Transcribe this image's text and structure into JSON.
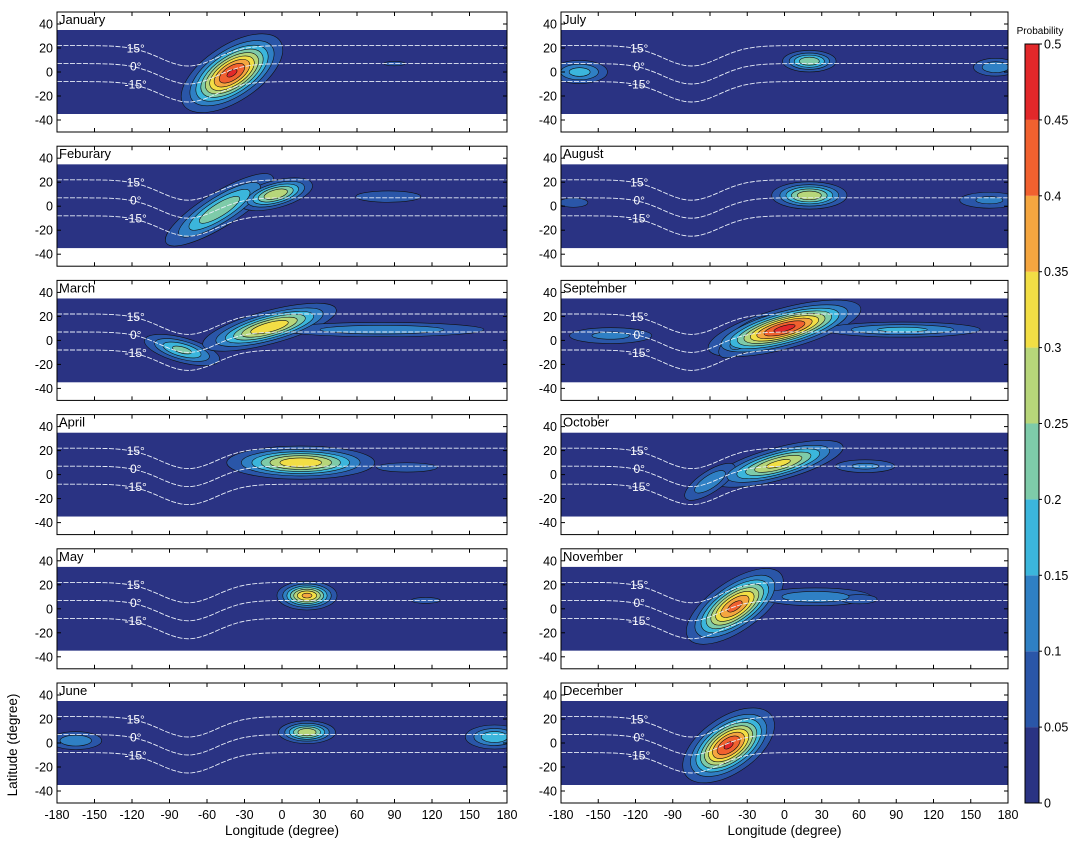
{
  "chart_data": {
    "type": "heatmap",
    "description_free": true,
    "x_axis": {
      "label": "Longitude (degree)",
      "range": [
        -180,
        180
      ],
      "ticks": [
        -180,
        -150,
        -120,
        -90,
        -60,
        -30,
        0,
        30,
        60,
        90,
        120,
        150,
        180
      ]
    },
    "y_axis": {
      "label": "Latitude (degree)",
      "range": [
        -50,
        50
      ],
      "data_range": [
        -35,
        35
      ],
      "ticks": [
        -40,
        -20,
        0,
        20,
        40
      ]
    },
    "colorbar": {
      "title": "Probability",
      "levels": [
        0,
        0.05,
        0.1,
        0.15,
        0.2,
        0.25,
        0.3,
        0.35,
        0.4,
        0.45,
        0.5
      ],
      "colors": [
        "#2a3383",
        "#2a56a8",
        "#2f80c4",
        "#3bb6dc",
        "#7ecba9",
        "#b7d67a",
        "#f2de45",
        "#f5a640",
        "#f1612f",
        "#e2282a",
        "#9c1b1e"
      ]
    },
    "magnetic_lines": [
      {
        "label": "15°",
        "mlat": 15
      },
      {
        "label": "0°",
        "mlat": 0
      },
      {
        "label": "-15°",
        "mlat": -15
      }
    ],
    "panels": [
      {
        "month": "January",
        "col": 0,
        "row": 0,
        "blobs": [
          {
            "lon": -40,
            "lat": -1,
            "slon": 22,
            "slat": 11,
            "rot": 0.4,
            "amp": 0.46
          },
          {
            "lon": 90,
            "lat": 7,
            "slon": 14,
            "slat": 3,
            "rot": 0,
            "amp": 0.06
          }
        ]
      },
      {
        "month": "Feburary",
        "col": 0,
        "row": 1,
        "blobs": [
          {
            "lon": -50,
            "lat": -3,
            "slon": 28,
            "slat": 8,
            "rot": 0.35,
            "amp": 0.25
          },
          {
            "lon": -5,
            "lat": 10,
            "slon": 16,
            "slat": 6,
            "rot": 0.1,
            "amp": 0.3
          },
          {
            "lon": 85,
            "lat": 8,
            "slon": 22,
            "slat": 4,
            "rot": 0,
            "amp": 0.1
          }
        ]
      },
      {
        "month": "March",
        "col": 0,
        "row": 2,
        "blobs": [
          {
            "lon": -80,
            "lat": -8,
            "slon": 18,
            "slat": 6,
            "rot": -0.1,
            "amp": 0.22
          },
          {
            "lon": -10,
            "lat": 11,
            "slon": 28,
            "slat": 7,
            "rot": 0.1,
            "amp": 0.35
          },
          {
            "lon": 80,
            "lat": 9,
            "slon": 55,
            "slat": 4,
            "rot": 0,
            "amp": 0.15
          }
        ]
      },
      {
        "month": "April",
        "col": 0,
        "row": 3,
        "blobs": [
          {
            "lon": 15,
            "lat": 10,
            "slon": 30,
            "slat": 7,
            "rot": 0,
            "amp": 0.35
          },
          {
            "lon": 100,
            "lat": 6,
            "slon": 25,
            "slat": 4,
            "rot": 0,
            "amp": 0.08
          }
        ]
      },
      {
        "month": "May",
        "col": 0,
        "row": 4,
        "blobs": [
          {
            "lon": 20,
            "lat": 11,
            "slon": 12,
            "slat": 6,
            "rot": 0,
            "amp": 0.37
          },
          {
            "lon": 115,
            "lat": 7,
            "slon": 14,
            "slat": 3,
            "rot": 0,
            "amp": 0.07
          }
        ]
      },
      {
        "month": "June",
        "col": 0,
        "row": 5,
        "blobs": [
          {
            "lon": 20,
            "lat": 9,
            "slon": 12,
            "slat": 5,
            "rot": 0,
            "amp": 0.3
          },
          {
            "lon": -165,
            "lat": 2,
            "slon": 14,
            "slat": 5,
            "rot": 0,
            "amp": 0.15
          },
          {
            "lon": 170,
            "lat": 5,
            "slon": 14,
            "slat": 6,
            "rot": 0,
            "amp": 0.2
          }
        ]
      },
      {
        "month": "July",
        "col": 1,
        "row": 0,
        "blobs": [
          {
            "lon": 20,
            "lat": 9,
            "slon": 12,
            "slat": 5,
            "rot": 0,
            "amp": 0.25
          },
          {
            "lon": -165,
            "lat": 0,
            "slon": 14,
            "slat": 6,
            "rot": 0,
            "amp": 0.18
          },
          {
            "lon": 170,
            "lat": 4,
            "slon": 12,
            "slat": 5,
            "rot": 0,
            "amp": 0.15
          }
        ]
      },
      {
        "month": "August",
        "col": 1,
        "row": 1,
        "blobs": [
          {
            "lon": 20,
            "lat": 9,
            "slon": 16,
            "slat": 6,
            "rot": 0,
            "amp": 0.3
          },
          {
            "lon": 165,
            "lat": 5,
            "slon": 18,
            "slat": 5,
            "rot": 0,
            "amp": 0.12
          },
          {
            "lon": -170,
            "lat": 3,
            "slon": 12,
            "slat": 4,
            "rot": 0,
            "amp": 0.08
          }
        ]
      },
      {
        "month": "September",
        "col": 1,
        "row": 2,
        "blobs": [
          {
            "lon": 0,
            "lat": 10,
            "slon": 30,
            "slat": 8,
            "rot": 0.1,
            "amp": 0.47
          },
          {
            "lon": -30,
            "lat": 3,
            "slon": 18,
            "slat": 7,
            "rot": 0.4,
            "amp": 0.15
          },
          {
            "lon": 95,
            "lat": 9,
            "slon": 40,
            "slat": 4,
            "rot": 0,
            "amp": 0.17
          },
          {
            "lon": -140,
            "lat": 4,
            "slon": 25,
            "slat": 5,
            "rot": 0,
            "amp": 0.12
          }
        ]
      },
      {
        "month": "October",
        "col": 1,
        "row": 3,
        "blobs": [
          {
            "lon": -5,
            "lat": 9,
            "slon": 28,
            "slat": 7,
            "rot": 0.1,
            "amp": 0.32
          },
          {
            "lon": -60,
            "lat": -6,
            "slon": 16,
            "slat": 6,
            "rot": 0.4,
            "amp": 0.15
          },
          {
            "lon": 65,
            "lat": 7,
            "slon": 18,
            "slat": 4,
            "rot": 0,
            "amp": 0.12
          }
        ]
      },
      {
        "month": "November",
        "col": 1,
        "row": 4,
        "blobs": [
          {
            "lon": -40,
            "lat": 2,
            "slon": 22,
            "slat": 10,
            "rot": 0.45,
            "amp": 0.42
          },
          {
            "lon": 25,
            "lat": 10,
            "slon": 30,
            "slat": 5,
            "rot": 0,
            "amp": 0.15
          },
          {
            "lon": 60,
            "lat": 8,
            "slon": 15,
            "slat": 4,
            "rot": 0,
            "amp": 0.08
          }
        ]
      },
      {
        "month": "December",
        "col": 1,
        "row": 5,
        "blobs": [
          {
            "lon": -45,
            "lat": -2,
            "slon": 20,
            "slat": 11,
            "rot": 0.45,
            "amp": 0.46
          }
        ]
      }
    ]
  }
}
